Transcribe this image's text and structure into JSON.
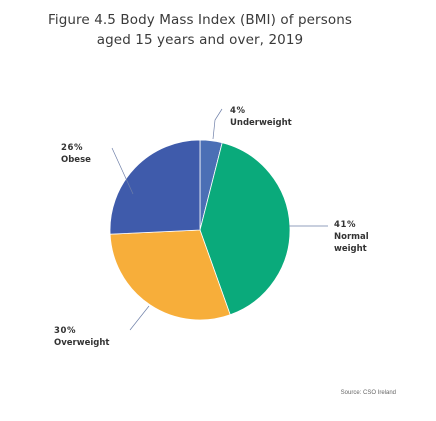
{
  "figure": {
    "title_line1": "Figure 4.5 Body Mass Index (BMI) of persons",
    "title_line2": "aged 15 years and over, 2019",
    "source": "Source: CSO Ireland"
  },
  "chart_data": {
    "type": "pie",
    "title": "Figure 4.5 Body Mass Index (BMI) of persons aged 15 years and over, 2019",
    "slices": [
      {
        "label_lines": [
          "Underweight"
        ],
        "value": 4,
        "value_label": "4%",
        "color": "#4b6fb5"
      },
      {
        "label_lines": [
          "Normal",
          "weight"
        ],
        "value": 41,
        "value_label": "41%",
        "color": "#0aaa7b"
      },
      {
        "label_lines": [
          "Overweight"
        ],
        "value": 30,
        "value_label": "30%",
        "color": "#f7ae3a"
      },
      {
        "label_lines": [
          "Obese"
        ],
        "value": 26,
        "value_label": "26%",
        "color": "#3f5bab"
      }
    ],
    "legend": "none"
  }
}
